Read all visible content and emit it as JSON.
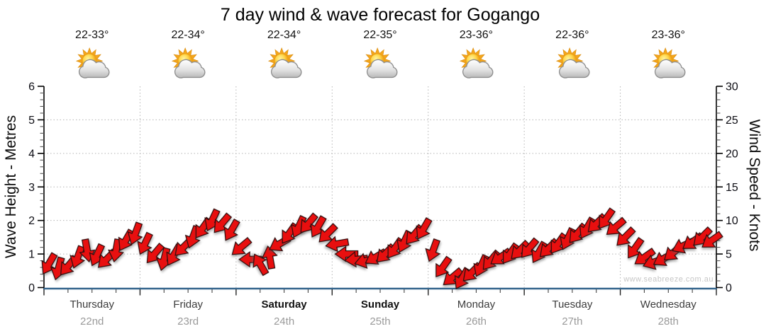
{
  "title": "7 day wind & wave forecast for Gogango",
  "watermark": "www.seabreeze.com.au",
  "colors": {
    "arrow_fill": "#e80f0f",
    "arrow_outline": "#2a0b0b",
    "bottom_axis": "#33648c",
    "side_axis": "#000000",
    "grid": "#b4b4b4",
    "tick_text": "#0d0d14",
    "day_text": "#3c3c3c",
    "date_text": "#9a9a9a",
    "sun_core": "#ffd84d",
    "sun_ray": "#f3a51c",
    "cloud_light": "#ffffff",
    "cloud_dark": "#b8b8b8",
    "cloud_stroke": "#8f8f8f"
  },
  "left_axis": {
    "label": "Wave Height - Metres",
    "min": 0,
    "max": 6,
    "major_ticks": [
      0,
      1,
      2,
      3,
      4,
      5,
      6
    ],
    "minor_step": 0.2
  },
  "right_axis": {
    "label": "Wind Speed - Knots",
    "min": 0,
    "max": 30,
    "major_ticks": [
      0,
      5,
      10,
      15,
      20,
      25,
      30
    ],
    "minor_step": 1
  },
  "days": [
    {
      "name": "Thursday",
      "date": "22nd",
      "temp": "22-33°",
      "bold": false,
      "icon": "sun-cloud"
    },
    {
      "name": "Friday",
      "date": "23rd",
      "temp": "22-34°",
      "bold": false,
      "icon": "sun-cloud"
    },
    {
      "name": "Saturday",
      "date": "24th",
      "temp": "22-34°",
      "bold": true,
      "icon": "sun-cloud"
    },
    {
      "name": "Sunday",
      "date": "25th",
      "temp": "22-35°",
      "bold": true,
      "icon": "sun-cloud"
    },
    {
      "name": "Monday",
      "date": "26th",
      "temp": "23-36°",
      "bold": false,
      "icon": "sun-cloud"
    },
    {
      "name": "Tuesday",
      "date": "27th",
      "temp": "22-36°",
      "bold": false,
      "icon": "sun-cloud"
    },
    {
      "name": "Wednesday",
      "date": "28th",
      "temp": "23-36°",
      "bold": false,
      "icon": "sun-cloud"
    }
  ],
  "chart_data": {
    "type": "scatter",
    "marker": "wind-direction-arrow",
    "title": "7 day wind & wave forecast for Gogango",
    "categories": [
      "Thursday 22nd",
      "Friday 23rd",
      "Saturday 24th",
      "Sunday 25th",
      "Monday 26th",
      "Tuesday 27th",
      "Wednesday 28th"
    ],
    "points_per_day": 10,
    "ylabel_left": "Wave Height - Metres",
    "ylabel_right": "Wind Speed - Knots",
    "ylim_left": [
      0,
      6
    ],
    "ylim_right": [
      0,
      30
    ],
    "grid": "dotted, horizontal every 5 knots (1 m), vertical at day boundaries",
    "legend_position": "none",
    "series": [
      {
        "name": "Wind speed (knots)",
        "values": [
          3.5,
          2.8,
          3.2,
          4.5,
          5.5,
          4.8,
          4.2,
          5.5,
          7.0,
          8.0,
          6.5,
          5.0,
          4.2,
          4.8,
          6.0,
          7.5,
          8.8,
          10.0,
          9.5,
          8.5,
          6.0,
          4.2,
          3.5,
          4.5,
          6.5,
          8.0,
          9.0,
          9.5,
          9.0,
          8.0,
          6.5,
          5.0,
          4.2,
          4.0,
          4.5,
          5.0,
          5.8,
          6.8,
          7.8,
          8.7,
          5.5,
          3.0,
          1.5,
          1.3,
          2.2,
          3.2,
          4.0,
          4.5,
          5.0,
          5.5,
          5.8,
          5.2,
          5.8,
          6.5,
          7.2,
          8.0,
          8.8,
          9.5,
          10.2,
          9.0,
          7.5,
          5.8,
          4.5,
          3.8,
          4.3,
          5.2,
          6.2,
          6.8,
          7.5,
          7.0
        ]
      },
      {
        "name": "Wind direction (deg, 0 = arrow pointing down-screen)",
        "values": [
          30,
          15,
          40,
          20,
          -10,
          25,
          45,
          10,
          30,
          20,
          25,
          40,
          15,
          30,
          45,
          20,
          35,
          25,
          40,
          30,
          50,
          90,
          150,
          170,
          60,
          35,
          25,
          40,
          30,
          45,
          80,
          90,
          85,
          75,
          60,
          45,
          35,
          25,
          40,
          30,
          20,
          35,
          50,
          30,
          45,
          25,
          40,
          55,
          35,
          45,
          40,
          30,
          45,
          35,
          25,
          40,
          30,
          45,
          35,
          50,
          45,
          35,
          55,
          70,
          60,
          50,
          65,
          55,
          45,
          55
        ]
      }
    ],
    "temperatures": [
      "22-33°",
      "22-34°",
      "22-34°",
      "22-35°",
      "23-36°",
      "22-36°",
      "23-36°"
    ],
    "weather_icons": [
      "sun-cloud",
      "sun-cloud",
      "sun-cloud",
      "sun-cloud",
      "sun-cloud",
      "sun-cloud",
      "sun-cloud"
    ]
  }
}
